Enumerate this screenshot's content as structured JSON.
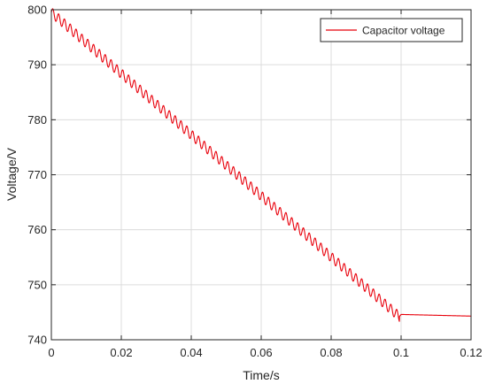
{
  "chart_data": {
    "type": "line",
    "title": "",
    "xlabel": "Time/s",
    "ylabel": "Voltage/V",
    "xlim": [
      0,
      0.12
    ],
    "ylim": [
      740,
      800
    ],
    "xticks": [
      0,
      0.02,
      0.04,
      0.06,
      0.08,
      0.1,
      0.12
    ],
    "xtick_labels": [
      "0",
      "0.02",
      "0.04",
      "0.06",
      "0.08",
      "0.1",
      "0.12"
    ],
    "yticks": [
      740,
      750,
      760,
      770,
      780,
      790,
      800
    ],
    "ytick_labels": [
      "740",
      "750",
      "760",
      "770",
      "780",
      "790",
      "800"
    ],
    "grid": true,
    "legend_position": "top-right",
    "series": [
      {
        "name": "Capacitor voltage",
        "color": "#e8000b",
        "x": [
          0,
          0.0995,
          0.1,
          0.12
        ],
        "y": [
          799.5,
          744.2,
          744.6,
          744.3
        ],
        "ripple_amplitude": 0.9,
        "ripple_frequency_hz": 600
      }
    ]
  }
}
